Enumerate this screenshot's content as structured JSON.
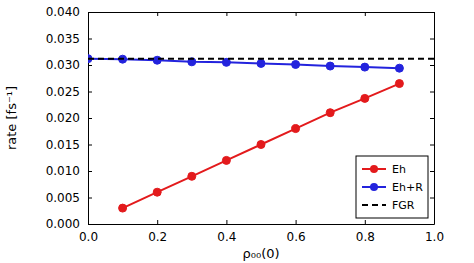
{
  "chart_data": {
    "type": "line",
    "x_label": "ρ₀₀(0)",
    "y_label": "rate [fs⁻¹]",
    "xlim": [
      0,
      1
    ],
    "ylim": [
      0,
      0.04
    ],
    "xticks": [
      {
        "value": 0,
        "label": "0.0"
      },
      {
        "value": 0.2,
        "label": "0.2"
      },
      {
        "value": 0.4,
        "label": "0.4"
      },
      {
        "value": 0.6,
        "label": "0.6"
      },
      {
        "value": 0.8,
        "label": "0.8"
      },
      {
        "value": 1,
        "label": "1.0"
      }
    ],
    "yticks": [
      {
        "value": 0,
        "label": "0.000"
      },
      {
        "value": 0.005,
        "label": "0.005"
      },
      {
        "value": 0.01,
        "label": "0.010"
      },
      {
        "value": 0.015,
        "label": "0.015"
      },
      {
        "value": 0.02,
        "label": "0.020"
      },
      {
        "value": 0.025,
        "label": "0.025"
      },
      {
        "value": 0.03,
        "label": "0.030"
      },
      {
        "value": 0.035,
        "label": "0.035"
      },
      {
        "value": 0.04,
        "label": "0.040"
      }
    ],
    "legend": "lower right",
    "series": [
      {
        "name": "Eh",
        "color": "#e31a1c",
        "marker": "circle",
        "line_style": "solid",
        "x": [
          0.1,
          0.2,
          0.3,
          0.4,
          0.5,
          0.6,
          0.7,
          0.8,
          0.9
        ],
        "values": [
          0.003,
          0.006,
          0.009,
          0.012,
          0.015,
          0.018,
          0.021,
          0.0237,
          0.0265
        ]
      },
      {
        "name": "Eh+R",
        "color": "#2323dd",
        "marker": "circle",
        "line_style": "solid",
        "x": [
          0.0,
          0.1,
          0.2,
          0.3,
          0.4,
          0.5,
          0.6,
          0.7,
          0.8,
          0.9
        ],
        "values": [
          0.0312,
          0.0311,
          0.0309,
          0.0306,
          0.0305,
          0.0303,
          0.0301,
          0.0298,
          0.0296,
          0.0294
        ]
      },
      {
        "name": "FGR",
        "color": "#000000",
        "marker": "none",
        "line_style": "dashed",
        "x": [
          0,
          1
        ],
        "values": [
          0.0312,
          0.0312
        ]
      }
    ]
  }
}
